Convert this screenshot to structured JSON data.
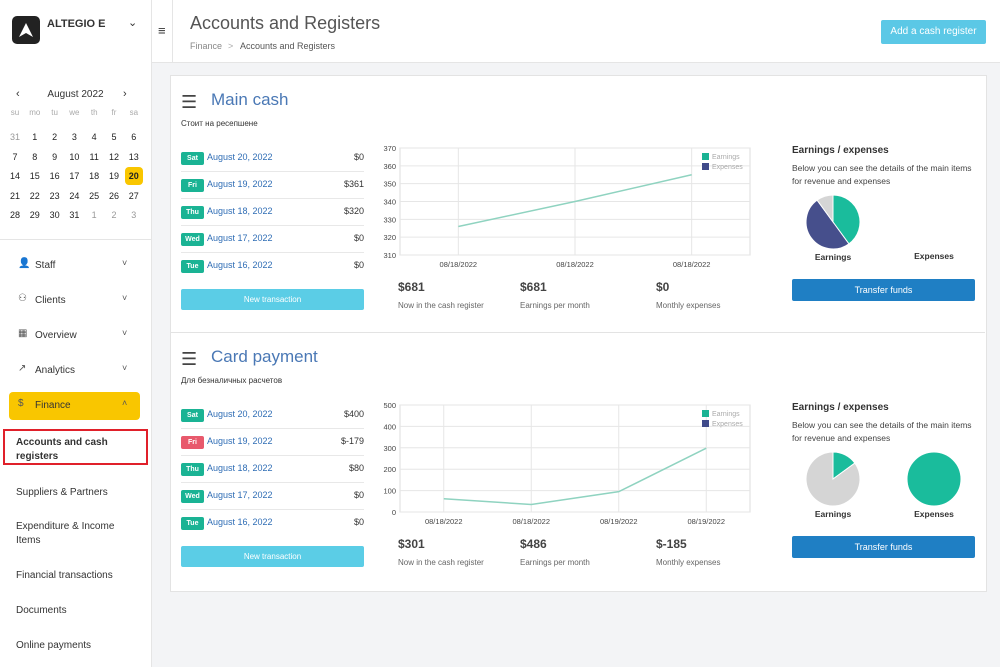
{
  "sidebar": {
    "company": "ALTEGIO E",
    "calendar": {
      "month": "August 2022",
      "weekdays": [
        "su",
        "mo",
        "tu",
        "we",
        "th",
        "fr",
        "sa"
      ],
      "weeks": [
        [
          31,
          1,
          2,
          3,
          4,
          5,
          6
        ],
        [
          7,
          8,
          9,
          10,
          11,
          12,
          13
        ],
        [
          14,
          15,
          16,
          17,
          18,
          19,
          20
        ],
        [
          21,
          22,
          23,
          24,
          25,
          26,
          27
        ],
        [
          28,
          29,
          30,
          31,
          1,
          2,
          3
        ]
      ],
      "selected": 20
    },
    "nav": [
      "Staff",
      "Clients",
      "Overview",
      "Analytics",
      "Finance"
    ],
    "active_nav": "Finance",
    "finance_items": [
      "Accounts and cash registers",
      "Suppliers & Partners",
      "Expenditure & Income Items",
      "Financial transactions",
      "Documents",
      "Online payments"
    ]
  },
  "header": {
    "title": "Accounts and Registers",
    "breadcrumb": [
      "Finance",
      ">",
      "Accounts and Registers"
    ],
    "button": "Add a cash register"
  },
  "registers": [
    {
      "title": "Main cash",
      "subtitle": "Стоит на ресепшене",
      "transactions": [
        {
          "day": "Sat",
          "date": "August 20, 2022",
          "amount": "$0",
          "tag_color": "#1ab394"
        },
        {
          "day": "Fri",
          "date": "August 19, 2022",
          "amount": "$361",
          "tag_color": "#1ab394"
        },
        {
          "day": "Thu",
          "date": "August 18, 2022",
          "amount": "$320",
          "tag_color": "#1ab394"
        },
        {
          "day": "Wed",
          "date": "August 17, 2022",
          "amount": "$0",
          "tag_color": "#1ab394"
        },
        {
          "day": "Tue",
          "date": "August 16, 2022",
          "amount": "$0",
          "tag_color": "#1ab394"
        }
      ],
      "button": "New transaction",
      "chart": {
        "type": "line",
        "categories": [
          "08/18/2022",
          "08/18/2022",
          "08/18/2022"
        ],
        "values": [
          326,
          340,
          355
        ],
        "color": "#8fd3c0",
        "ylim": [
          310,
          370
        ],
        "yticks": [
          310,
          320,
          330,
          340,
          350,
          360,
          370
        ],
        "grid": true,
        "legend": [
          {
            "name": "Earnings",
            "color": "#1ab394"
          },
          {
            "name": "Expenses",
            "color": "#3f4a8a"
          }
        ]
      },
      "stats": [
        {
          "value": "$681",
          "label": "Now in the cash register"
        },
        {
          "value": "$681",
          "label": "Earnings per month"
        },
        {
          "value": "$0",
          "label": "Monthly expenses"
        }
      ],
      "panel": {
        "title": "Earnings / expenses",
        "text": "Below you can see the details of the main items for revenue and expenses",
        "pies": [
          {
            "type": "pie",
            "label": "Earnings",
            "values": [
              40,
              50,
              10
            ],
            "colors": [
              "#1abc9c",
              "#464f8c",
              "#d5d5d5"
            ]
          },
          {
            "type": "pie",
            "label": "Expenses",
            "values": [],
            "colors": []
          }
        ],
        "button": "Transfer funds"
      }
    },
    {
      "title": "Card payment",
      "subtitle": "Для безналичных расчетов",
      "transactions": [
        {
          "day": "Sat",
          "date": "August 20, 2022",
          "amount": "$400",
          "tag_color": "#1ab394"
        },
        {
          "day": "Fri",
          "date": "August 19, 2022",
          "amount": "$-179",
          "tag_color": "#e8596c"
        },
        {
          "day": "Thu",
          "date": "August 18, 2022",
          "amount": "$80",
          "tag_color": "#1ab394"
        },
        {
          "day": "Wed",
          "date": "August 17, 2022",
          "amount": "$0",
          "tag_color": "#1ab394"
        },
        {
          "day": "Tue",
          "date": "August 16, 2022",
          "amount": "$0",
          "tag_color": "#1ab394"
        }
      ],
      "button": "New transaction",
      "chart": {
        "type": "line",
        "categories": [
          "08/18/2022",
          "08/18/2022",
          "08/19/2022",
          "08/19/2022"
        ],
        "values": [
          62,
          35,
          95,
          298
        ],
        "color": "#8fd3c0",
        "ylim": [
          0,
          500
        ],
        "yticks": [
          0,
          100,
          200,
          300,
          400,
          500
        ],
        "grid": true,
        "legend": [
          {
            "name": "Earnings",
            "color": "#1ab394"
          },
          {
            "name": "Expenses",
            "color": "#3f4a8a"
          }
        ]
      },
      "stats": [
        {
          "value": "$301",
          "label": "Now in the cash register"
        },
        {
          "value": "$486",
          "label": "Earnings per month"
        },
        {
          "value": "$-185",
          "label": "Monthly expenses"
        }
      ],
      "panel": {
        "title": "Earnings / expenses",
        "text": "Below you can see the details of the main items for revenue and expenses",
        "pies": [
          {
            "type": "pie",
            "label": "Earnings",
            "values": [
              15,
              85
            ],
            "colors": [
              "#1abc9c",
              "#d5d5d5"
            ]
          },
          {
            "type": "pie",
            "label": "Expenses",
            "values": [
              100
            ],
            "colors": [
              "#1abc9c"
            ]
          }
        ],
        "button": "Transfer funds"
      }
    }
  ]
}
